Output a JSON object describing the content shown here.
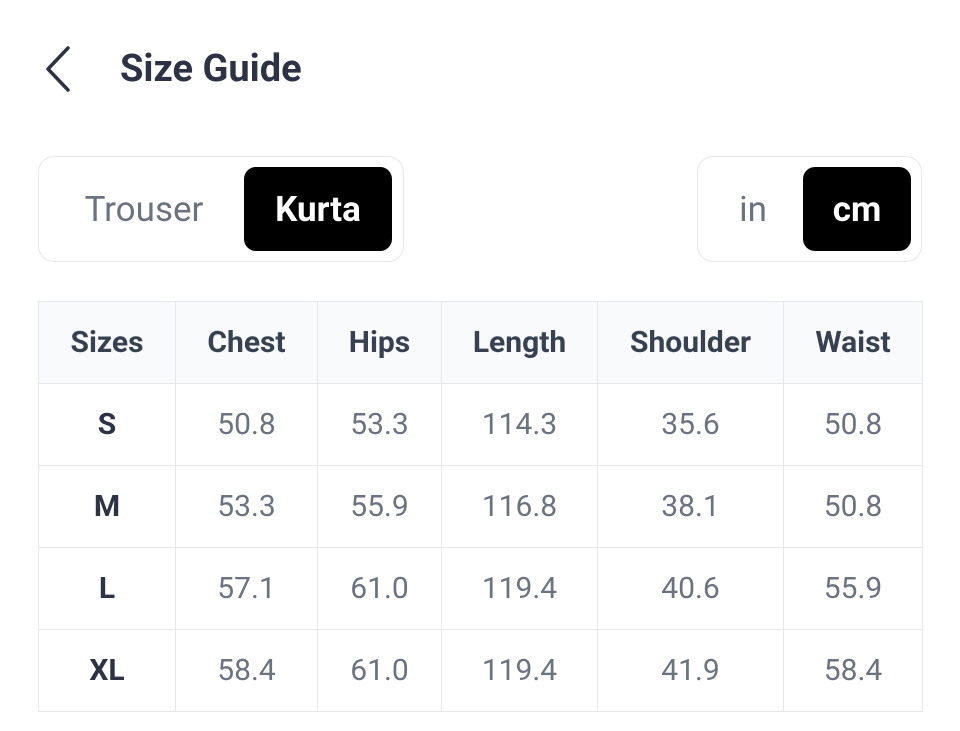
{
  "header": {
    "title": "Size Guide"
  },
  "garment_toggle": {
    "options": [
      "Trouser",
      "Kurta"
    ],
    "selected": 1
  },
  "unit_toggle": {
    "options": [
      "in",
      "cm"
    ],
    "selected": 1
  },
  "table": {
    "columns": [
      "Sizes",
      "Chest",
      "Hips",
      "Length",
      "Shoulder",
      "Waist"
    ],
    "rows": [
      [
        "S",
        "50.8",
        "53.3",
        "114.3",
        "35.6",
        "50.8"
      ],
      [
        "M",
        "53.3",
        "55.9",
        "116.8",
        "38.1",
        "50.8"
      ],
      [
        "L",
        "57.1",
        "61.0",
        "119.4",
        "40.6",
        "55.9"
      ],
      [
        "XL",
        "58.4",
        "61.0",
        "119.4",
        "41.9",
        "58.4"
      ]
    ]
  }
}
